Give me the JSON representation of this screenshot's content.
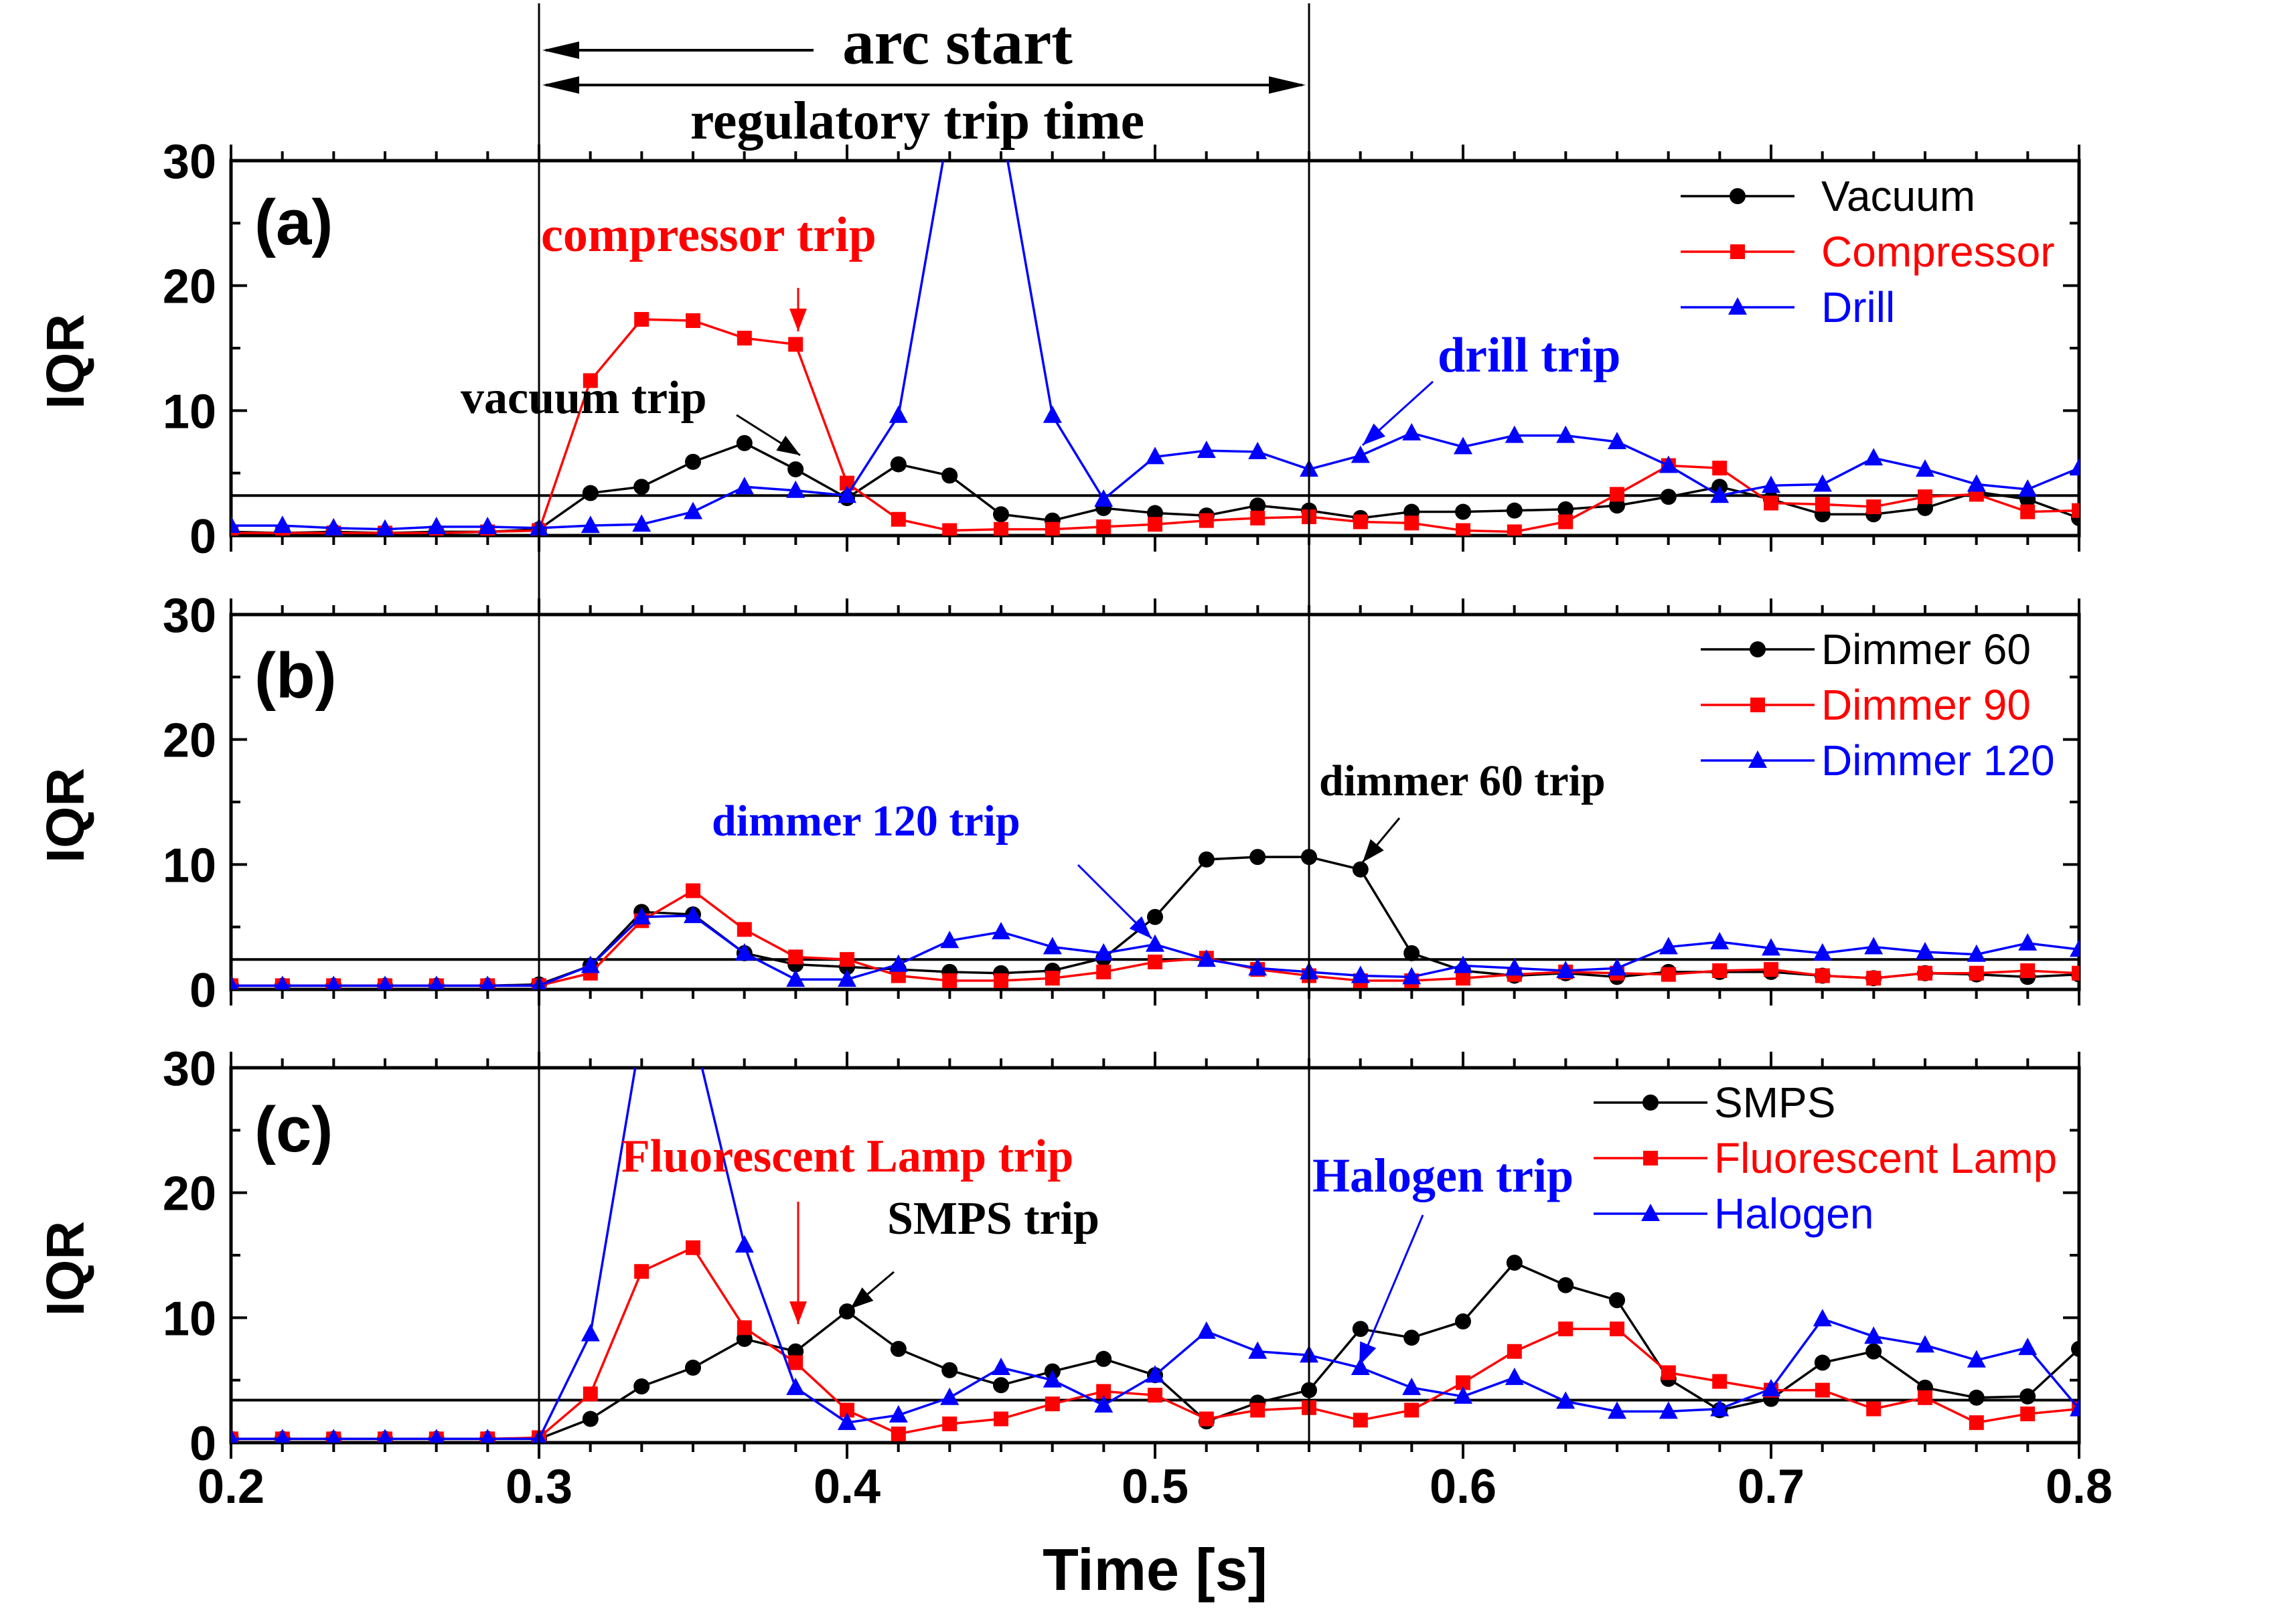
{
  "figure": {
    "title_top": "arc start",
    "title_second": "regulatory trip time",
    "x_label": "Time [s]",
    "y_label": "IQR",
    "x_ticks": [
      "0.2",
      "0.3",
      "0.4",
      "0.5",
      "0.6",
      "0.7",
      "0.8"
    ],
    "y_ticks": [
      "0",
      "10",
      "20",
      "30"
    ],
    "marker_lines_x": [
      0.3,
      0.55
    ]
  },
  "chart_data": [
    {
      "panel": "(a)",
      "type": "line",
      "xlim": [
        0.2,
        0.8
      ],
      "ylim": [
        0,
        30
      ],
      "threshold": 3.2,
      "x": [
        0.2,
        0.2167,
        0.2333,
        0.25,
        0.2667,
        0.2833,
        0.3,
        0.3167,
        0.3333,
        0.35,
        0.3667,
        0.3833,
        0.4,
        0.4167,
        0.4333,
        0.45,
        0.4667,
        0.4833,
        0.5,
        0.5167,
        0.5333,
        0.55,
        0.5667,
        0.5833,
        0.6,
        0.6167,
        0.6333,
        0.65,
        0.6667,
        0.6833,
        0.7,
        0.7167,
        0.7333,
        0.75,
        0.7667,
        0.7833,
        0.8
      ],
      "series": [
        {
          "name": "Vacuum",
          "color": "#000000",
          "marker": "circle",
          "values": [
            0.3,
            0.2,
            0.3,
            0.2,
            0.3,
            0.3,
            0.5,
            3.4,
            3.9,
            5.9,
            7.4,
            5.3,
            3.0,
            5.7,
            4.8,
            1.7,
            1.2,
            2.2,
            1.8,
            1.6,
            2.4,
            2.0,
            1.4,
            1.9,
            1.9,
            2.0,
            2.1,
            2.4,
            3.1,
            3.9,
            2.9,
            1.7,
            1.7,
            2.2,
            3.5,
            2.9,
            1.4
          ]
        },
        {
          "name": "Compressor",
          "color": "#ff0000",
          "marker": "square",
          "values": [
            0.2,
            0.2,
            0.2,
            0.2,
            0.2,
            0.3,
            0.4,
            12.4,
            17.3,
            17.2,
            15.8,
            15.3,
            4.2,
            1.3,
            0.4,
            0.5,
            0.5,
            0.7,
            0.9,
            1.2,
            1.4,
            1.5,
            1.1,
            1.0,
            0.4,
            0.3,
            1.1,
            3.3,
            5.6,
            5.4,
            2.6,
            2.5,
            2.3,
            3.1,
            3.3,
            1.9,
            2.0
          ]
        },
        {
          "name": "Drill",
          "color": "#0000ff",
          "marker": "triangle",
          "values": [
            0.8,
            0.8,
            0.6,
            0.5,
            0.7,
            0.7,
            0.6,
            0.8,
            0.9,
            1.9,
            3.9,
            3.6,
            3.2,
            9.6,
            30,
            30,
            9.6,
            2.9,
            6.3,
            6.8,
            6.7,
            5.3,
            6.4,
            8.2,
            7.1,
            8.0,
            8.0,
            7.5,
            5.6,
            3.2,
            4.0,
            4.1,
            6.2,
            5.3,
            4.1,
            3.7,
            5.4
          ]
        }
      ],
      "annotations": [
        {
          "text": "compressor trip",
          "color": "#ff0000"
        },
        {
          "text": "vacuum trip",
          "color": "#000000"
        },
        {
          "text": "drill trip",
          "color": "#0000ff"
        }
      ]
    },
    {
      "panel": "(b)",
      "type": "line",
      "xlim": [
        0.2,
        0.8
      ],
      "ylim": [
        0,
        30
      ],
      "threshold": 2.4,
      "x": [
        0.2,
        0.2167,
        0.2333,
        0.25,
        0.2667,
        0.2833,
        0.3,
        0.3167,
        0.3333,
        0.35,
        0.3667,
        0.3833,
        0.4,
        0.4167,
        0.4333,
        0.45,
        0.4667,
        0.4833,
        0.5,
        0.5167,
        0.5333,
        0.55,
        0.5667,
        0.5833,
        0.6,
        0.6167,
        0.6333,
        0.65,
        0.6667,
        0.6833,
        0.7,
        0.7167,
        0.7333,
        0.75,
        0.7667,
        0.7833,
        0.8
      ],
      "series": [
        {
          "name": "Dimmer  60",
          "color": "#000000",
          "marker": "circle",
          "values": [
            0.3,
            0.3,
            0.3,
            0.3,
            0.3,
            0.3,
            0.4,
            1.9,
            6.2,
            6.0,
            2.9,
            2.0,
            1.8,
            1.6,
            1.4,
            1.3,
            1.5,
            2.5,
            5.8,
            10.4,
            10.6,
            10.6,
            9.6,
            2.9,
            1.5,
            1.1,
            1.3,
            1.0,
            1.4,
            1.4,
            1.4,
            1.1,
            0.9,
            1.3,
            1.2,
            1.0,
            1.2
          ]
        },
        {
          "name": "Dimmer  90",
          "color": "#ff0000",
          "marker": "square",
          "values": [
            0.3,
            0.3,
            0.3,
            0.3,
            0.3,
            0.3,
            0.3,
            1.3,
            5.5,
            7.9,
            4.8,
            2.6,
            2.4,
            1.1,
            0.7,
            0.7,
            0.9,
            1.4,
            2.2,
            2.5,
            1.6,
            1.1,
            0.7,
            0.7,
            0.9,
            1.2,
            1.4,
            1.3,
            1.2,
            1.5,
            1.6,
            1.1,
            0.9,
            1.3,
            1.3,
            1.5,
            1.3
          ]
        },
        {
          "name": "Dimmer 120",
          "color": "#0000ff",
          "marker": "triangle",
          "values": [
            0.3,
            0.3,
            0.3,
            0.3,
            0.3,
            0.3,
            0.3,
            1.9,
            5.8,
            5.9,
            2.9,
            0.8,
            0.8,
            2.0,
            3.9,
            4.6,
            3.4,
            2.9,
            3.6,
            2.4,
            1.7,
            1.4,
            1.1,
            1.0,
            1.9,
            1.7,
            1.5,
            1.7,
            3.4,
            3.8,
            3.3,
            2.9,
            3.4,
            3.0,
            2.8,
            3.7,
            3.2
          ]
        }
      ],
      "annotations": [
        {
          "text": "dimmer 120 trip",
          "color": "#0000ff"
        },
        {
          "text": "dimmer 60 trip",
          "color": "#000000"
        }
      ]
    },
    {
      "panel": "(c)",
      "type": "line",
      "xlim": [
        0.2,
        0.8
      ],
      "ylim": [
        0,
        30
      ],
      "threshold": 3.4,
      "x": [
        0.2,
        0.2167,
        0.2333,
        0.25,
        0.2667,
        0.2833,
        0.3,
        0.3167,
        0.3333,
        0.35,
        0.3667,
        0.3833,
        0.4,
        0.4167,
        0.4333,
        0.45,
        0.4667,
        0.4833,
        0.5,
        0.5167,
        0.5333,
        0.55,
        0.5667,
        0.5833,
        0.6,
        0.6167,
        0.6333,
        0.65,
        0.6667,
        0.6833,
        0.7,
        0.7167,
        0.7333,
        0.75,
        0.7667,
        0.7833,
        0.8
      ],
      "series": [
        {
          "name": "SMPS",
          "color": "#000000",
          "marker": "circle",
          "values": [
            0.3,
            0.3,
            0.3,
            0.3,
            0.3,
            0.3,
            0.3,
            1.9,
            4.5,
            6.0,
            8.3,
            7.3,
            10.5,
            7.5,
            5.8,
            4.6,
            5.7,
            6.7,
            5.4,
            1.7,
            3.2,
            4.2,
            9.1,
            8.4,
            9.7,
            14.4,
            12.6,
            11.4,
            5.1,
            2.6,
            3.5,
            6.4,
            7.3,
            4.4,
            3.6,
            3.7,
            7.5
          ]
        },
        {
          "name": "Fluorescent Lamp",
          "color": "#ff0000",
          "marker": "square",
          "values": [
            0.3,
            0.3,
            0.3,
            0.3,
            0.3,
            0.3,
            0.4,
            3.9,
            13.7,
            15.6,
            9.2,
            6.4,
            2.6,
            0.7,
            1.5,
            1.9,
            3.1,
            4.1,
            3.8,
            1.9,
            2.6,
            2.8,
            1.8,
            2.6,
            4.8,
            7.3,
            9.1,
            9.1,
            5.6,
            4.9,
            4.2,
            4.2,
            2.7,
            3.6,
            1.6,
            2.3,
            2.7
          ]
        },
        {
          "name": "Halogen",
          "color": "#0000ff",
          "marker": "triangle",
          "values": [
            0.3,
            0.3,
            0.3,
            0.3,
            0.3,
            0.3,
            0.3,
            8.7,
            30,
            30,
            15.8,
            4.4,
            1.6,
            2.2,
            3.6,
            6.0,
            5.0,
            3.0,
            5.4,
            8.9,
            7.3,
            7.0,
            6.0,
            4.4,
            3.7,
            5.2,
            3.3,
            2.5,
            2.5,
            2.7,
            4.3,
            9.9,
            8.5,
            7.8,
            6.6,
            7.6,
            2.7
          ]
        }
      ],
      "annotations": [
        {
          "text": "Fluorescent Lamp trip",
          "color": "#ff0000"
        },
        {
          "text": "SMPS trip",
          "color": "#000000"
        },
        {
          "text": "Halogen trip",
          "color": "#0000ff"
        }
      ]
    }
  ]
}
